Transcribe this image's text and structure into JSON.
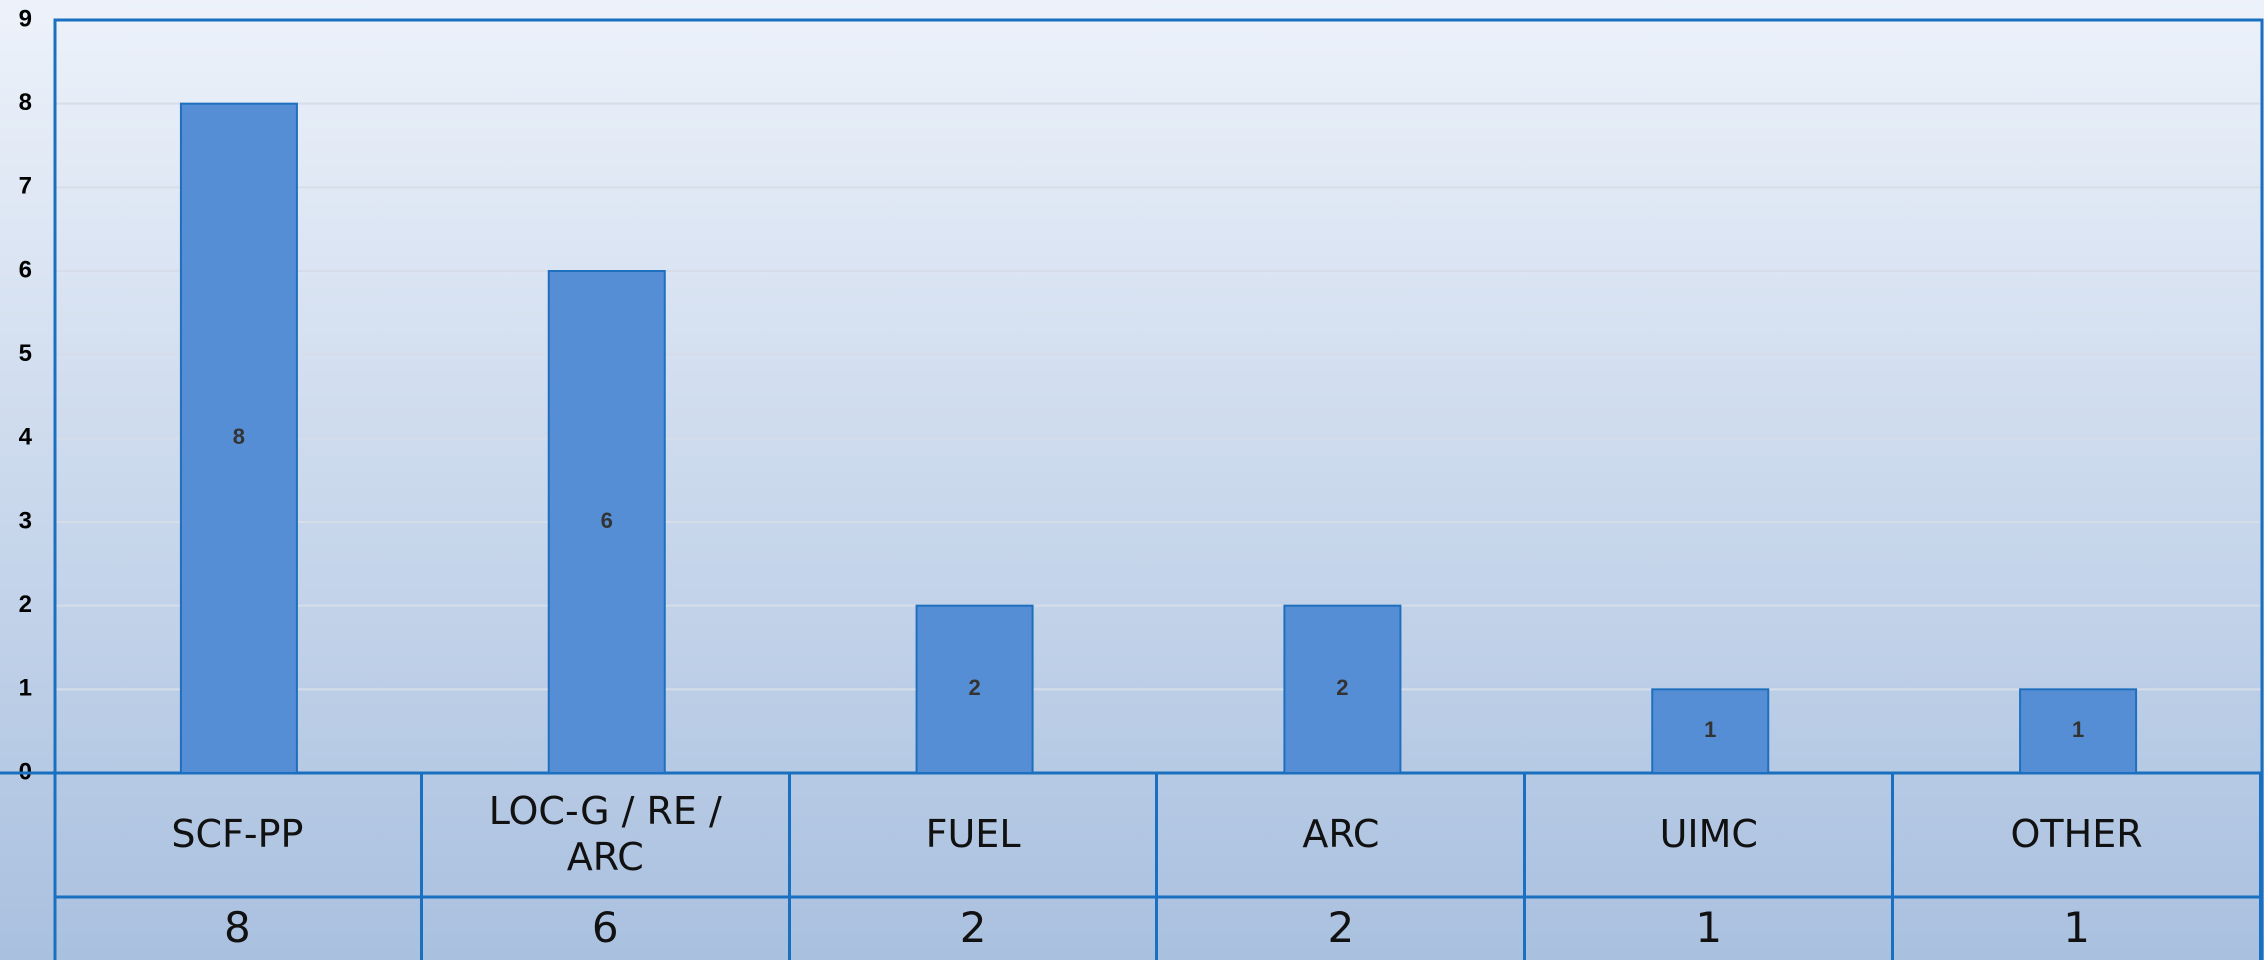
{
  "chart_data": {
    "type": "bar",
    "categories": [
      "SCF-PP",
      "LOC-G / RE / ARC",
      "FUEL",
      "ARC",
      "UIMC",
      "OTHER"
    ],
    "values": [
      8,
      6,
      2,
      2,
      1,
      1
    ],
    "color": "#558ed5",
    "ylim": [
      0,
      9
    ],
    "yticks": [
      0,
      1,
      2,
      3,
      4,
      5,
      6,
      7,
      8,
      9
    ],
    "grid": true
  }
}
